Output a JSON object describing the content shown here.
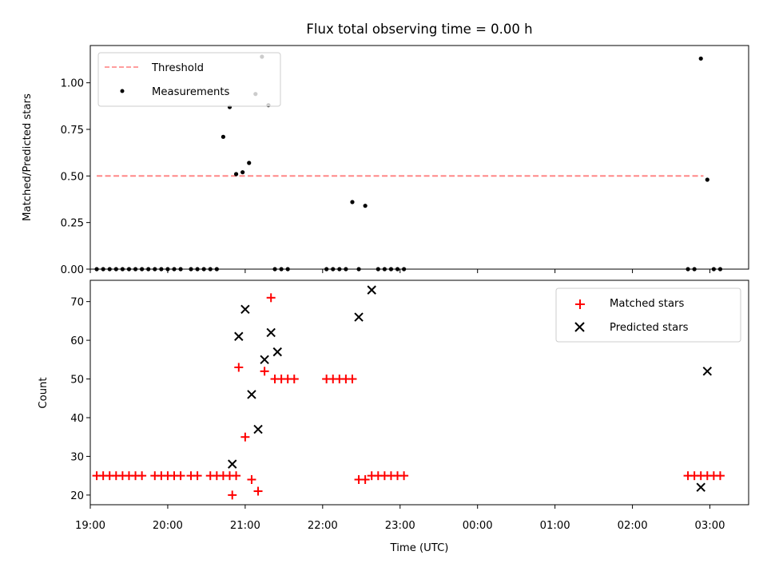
{
  "colors": {
    "threshold": "#ff7f7f",
    "measurements": "#000000",
    "matched": "#ff0000",
    "predicted": "#000000"
  },
  "chart_data": [
    {
      "type": "scatter",
      "title": "Flux total observing time = 0.00 h",
      "xlabel": "",
      "ylabel": "Matched/Predicted stars",
      "xlim": [
        19.0,
        3.5
      ],
      "ylim": [
        0,
        1.2
      ],
      "yticks": [
        0,
        0.25,
        0.5,
        0.75,
        1.0
      ],
      "ytick_labels": [
        "0.00",
        "0.25",
        "0.50",
        "0.75",
        "1.00"
      ],
      "legend": {
        "position": "top-left",
        "entries": [
          "Threshold",
          "Measurements"
        ]
      },
      "threshold": {
        "name": "Threshold",
        "y": 0.5,
        "x_range": [
          "19:05",
          "02:55"
        ]
      },
      "series": [
        {
          "name": "Measurements",
          "x": [
            "19:05",
            "19:10",
            "19:15",
            "19:20",
            "19:25",
            "19:30",
            "19:35",
            "19:40",
            "19:45",
            "19:50",
            "19:55",
            "20:00",
            "20:05",
            "20:10",
            "20:18",
            "20:23",
            "20:28",
            "20:33",
            "20:38",
            "20:43",
            "20:48",
            "20:53",
            "20:58",
            "21:03",
            "21:08",
            "21:13",
            "21:18",
            "21:23",
            "21:28",
            "21:33",
            "22:03",
            "22:08",
            "22:13",
            "22:18",
            "22:23",
            "22:28",
            "22:33",
            "22:43",
            "22:48",
            "22:53",
            "22:58",
            "23:03",
            "02:43",
            "02:48",
            "02:53",
            "02:58",
            "03:03",
            "03:08"
          ],
          "y": [
            0,
            0,
            0,
            0,
            0,
            0,
            0,
            0,
            0,
            0,
            0,
            0,
            0,
            0,
            0,
            0,
            0,
            0,
            0,
            0.71,
            0.87,
            0.51,
            0.52,
            0.57,
            0.94,
            1.14,
            0.88,
            0,
            0,
            0,
            0,
            0,
            0,
            0,
            0.36,
            0,
            0.34,
            0,
            0,
            0,
            0,
            0,
            0,
            0,
            1.13,
            0.48,
            0,
            0
          ]
        }
      ]
    },
    {
      "type": "scatter",
      "title": "",
      "xlabel": "Time (UTC)",
      "ylabel": "Count",
      "xlim": [
        19.0,
        3.5
      ],
      "ylim": [
        17.5,
        75.5
      ],
      "yticks": [
        20,
        30,
        40,
        50,
        60,
        70
      ],
      "ytick_labels": [
        "20",
        "30",
        "40",
        "50",
        "60",
        "70"
      ],
      "xticks": [
        "19:00",
        "20:00",
        "21:00",
        "22:00",
        "23:00",
        "00:00",
        "01:00",
        "02:00",
        "03:00"
      ],
      "legend": {
        "position": "top-right",
        "entries": [
          "Matched stars",
          "Predicted stars"
        ]
      },
      "series": [
        {
          "name": "Matched stars",
          "marker": "+",
          "x": [
            "19:05",
            "19:10",
            "19:15",
            "19:20",
            "19:25",
            "19:30",
            "19:35",
            "19:40",
            "19:50",
            "19:55",
            "20:00",
            "20:05",
            "20:10",
            "20:18",
            "20:23",
            "20:33",
            "20:38",
            "20:43",
            "20:48",
            "20:53",
            "20:50",
            "20:55",
            "21:00",
            "21:05",
            "21:10",
            "21:15",
            "21:20",
            "21:23",
            "21:28",
            "21:33",
            "21:38",
            "22:03",
            "22:08",
            "22:13",
            "22:18",
            "22:23",
            "22:28",
            "22:33",
            "22:38",
            "22:43",
            "22:48",
            "22:53",
            "22:58",
            "23:03",
            "02:43",
            "02:48",
            "02:53",
            "02:58",
            "03:03",
            "03:08"
          ],
          "y": [
            25,
            25,
            25,
            25,
            25,
            25,
            25,
            25,
            25,
            25,
            25,
            25,
            25,
            25,
            25,
            25,
            25,
            25,
            25,
            25,
            20,
            53,
            35,
            24,
            21,
            52,
            71,
            50,
            50,
            50,
            50,
            50,
            50,
            50,
            50,
            50,
            24,
            24,
            25,
            25,
            25,
            25,
            25,
            25,
            25,
            25,
            25,
            25,
            25,
            25
          ]
        },
        {
          "name": "Predicted stars",
          "marker": "x",
          "x": [
            "20:50",
            "20:55",
            "21:00",
            "21:05",
            "21:10",
            "21:15",
            "21:20",
            "21:25",
            "22:28",
            "22:38",
            "02:53",
            "02:58"
          ],
          "y": [
            28,
            61,
            68,
            46,
            37,
            55,
            62,
            57,
            66,
            73,
            22,
            52
          ]
        }
      ]
    }
  ]
}
